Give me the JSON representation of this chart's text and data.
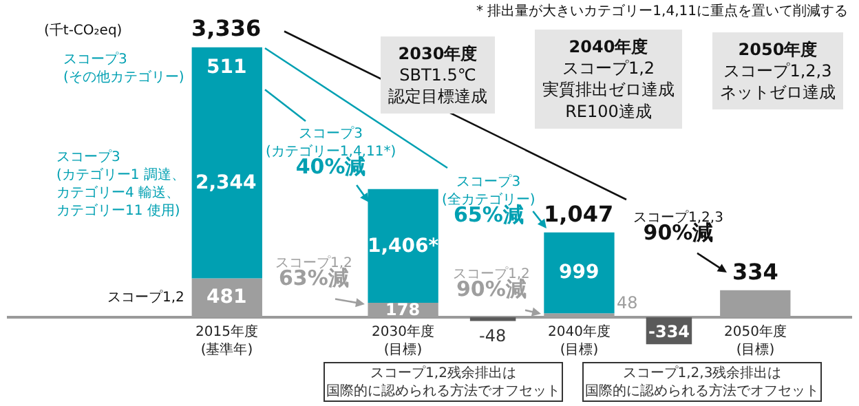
{
  "chart_data": {
    "type": "bar",
    "stacked": true,
    "categories": [
      "2015年度\n(基準年)",
      "2030年度\n(目標)",
      "2040年度\n(目標)",
      "2050年度\n(目標)"
    ],
    "series": [
      {
        "name": "スコープ1,2",
        "color": "#9e9e9e",
        "values": [
          481,
          178,
          48,
          334
        ],
        "value_labels": [
          "481",
          "178",
          "48",
          null
        ]
      },
      {
        "name": "スコープ3\n(カテゴリー1 調達、カテゴリー4 輸送、カテゴリー11 使用)",
        "color": "#00a0b2",
        "values": [
          2344,
          1406,
          999,
          null
        ],
        "value_labels": [
          "2,344",
          "1,406*",
          "999",
          null
        ]
      },
      {
        "name": "スコープ3\n(その他カテゴリー)",
        "color": "#00a0b2",
        "values": [
          511,
          null,
          null,
          null
        ],
        "value_labels": [
          "511",
          null,
          null,
          null
        ]
      },
      {
        "color": "#5a5a5a",
        "values": [
          null,
          null,
          -48,
          -334
        ],
        "value_labels": [
          null,
          null,
          "-48",
          "-334"
        ]
      }
    ],
    "totals": [
      "3,336",
      null,
      null,
      null
    ],
    "annotations": [
      "* 排出量が大きいカテゴリー1,4,11に重点を置いて削減する",
      "(千t-CO₂eq)",
      "2030年度\nSBT1.5℃\n認定目標達成",
      "2040年度スコープ1,2実質排出ゼロ達成RE100達成",
      "2050年度スコープ1,2,3ネットゼロ達成",
      "スコープ3\n(カテゴリー1,4,11*)\n40%減",
      "スコープ3\n(全カテゴリー)\n65%減",
      "スコープ1,2\n63%減",
      "スコープ1,2\n90%減",
      "スコープ1,2,3\n90%減",
      "スコープ1,2残余排出は国際的に認められる方法でオフセット",
      "スコープ1,2,3残余排出は国際的に認められる方法でオフセット",
      {
        "text": "1,047",
        "x": "2040年度\n(目標)",
        "y": 1047
      },
      {
        "text": "334",
        "x": "2050年度\n(目標)",
        "y": 334
      }
    ]
  }
}
